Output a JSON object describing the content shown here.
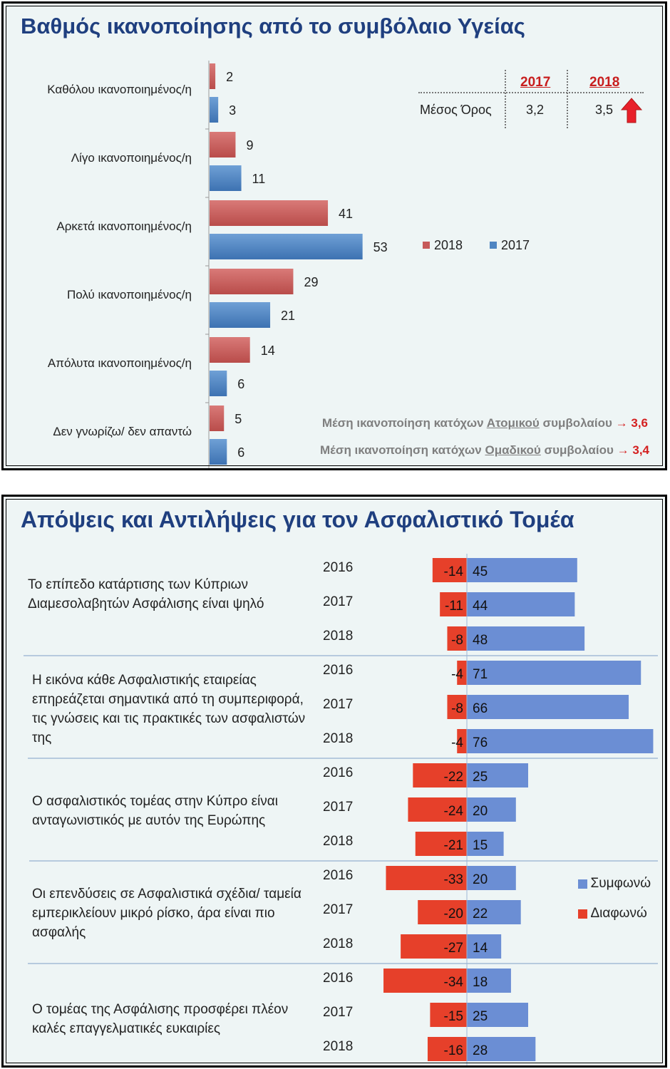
{
  "colors": {
    "red_bar": "#c65a5a",
    "blue_bar": "#4f85c2",
    "agree": "#6b8ed4",
    "disagree": "#e6402a",
    "title": "#1f3f7f",
    "accent_red": "#d42020"
  },
  "panel1": {
    "title": "Βαθμός ικανοποίησης από το συμβόλαιο Υγείας",
    "chart_data": {
      "type": "bar",
      "orientation": "horizontal",
      "categories": [
        "Καθόλου ικανοποιημένος/η",
        "Λίγο ικανοποιημένος/η",
        "Αρκετά ικανοποιημένος/η",
        "Πολύ ικανοποιημένος/η",
        "Απόλυτα ικανοποιημένος/η",
        "Δεν γνωρίζω/ δεν απαντώ"
      ],
      "series": [
        {
          "name": "2018",
          "values": [
            2,
            9,
            41,
            29,
            14,
            5
          ]
        },
        {
          "name": "2017",
          "values": [
            3,
            11,
            53,
            21,
            6,
            6
          ]
        }
      ],
      "legend": [
        "2018",
        "2017"
      ],
      "legend_position": "right"
    },
    "mean_table": {
      "col_2017": "2017",
      "col_2018": "2018",
      "row_label": "Μέσος Όρος",
      "val_2017": "3,2",
      "val_2018": "3,5"
    },
    "notes": [
      {
        "prefix": "Μέση ικανοποίηση κατόχων ",
        "underlined": "Ατομικού",
        "suffix": " συμβολαίου",
        "arrow": "→",
        "value": "3,6"
      },
      {
        "prefix": "Μέση ικανοποίηση κατόχων ",
        "underlined": "Ομαδικού",
        "suffix": " συμβολαίου",
        "arrow": "→",
        "value": "3,4"
      }
    ]
  },
  "panel2": {
    "title": "Απόψεις και Αντιλήψεις για τον Ασφαλιστικό Τομέα",
    "years": [
      "2016",
      "2017",
      "2018"
    ],
    "legend": {
      "agree": "Συμφωνώ",
      "disagree": "Διαφωνώ"
    },
    "chart_data": {
      "type": "bar",
      "orientation": "horizontal",
      "stacked": "diverging",
      "groups": [
        {
          "statement": "Το επίπεδο κατάρτισης των Κύπριων Διαμεσολαβητών Ασφάλισης είναι ψηλό",
          "rows": [
            {
              "year": "2016",
              "disagree": -14,
              "agree": 45
            },
            {
              "year": "2017",
              "disagree": -11,
              "agree": 44
            },
            {
              "year": "2018",
              "disagree": -8,
              "agree": 48
            }
          ]
        },
        {
          "statement": "Η εικόνα κάθε Ασφαλιστικής εταιρείας επηρεάζεται σημαντικά από τη συμπεριφορά, τις γνώσεις και τις πρακτικές των ασφαλιστών της",
          "rows": [
            {
              "year": "2016",
              "disagree": -4,
              "agree": 71
            },
            {
              "year": "2017",
              "disagree": -8,
              "agree": 66
            },
            {
              "year": "2018",
              "disagree": -4,
              "agree": 76
            }
          ]
        },
        {
          "statement": "Ο ασφαλιστικός τομέας στην Κύπρο είναι ανταγωνιστικός με αυτόν της Ευρώπης",
          "rows": [
            {
              "year": "2016",
              "disagree": -22,
              "agree": 25
            },
            {
              "year": "2017",
              "disagree": -24,
              "agree": 20
            },
            {
              "year": "2018",
              "disagree": -21,
              "agree": 15
            }
          ]
        },
        {
          "statement": "Οι επενδύσεις σε Ασφαλιστικά σχέδια/ ταμεία εμπερικλείουν μικρό ρίσκο, άρα είναι πιο ασφαλής",
          "rows": [
            {
              "year": "2016",
              "disagree": -33,
              "agree": 20
            },
            {
              "year": "2017",
              "disagree": -20,
              "agree": 22
            },
            {
              "year": "2018",
              "disagree": -27,
              "agree": 14
            }
          ]
        },
        {
          "statement": "Ο τομέας της Ασφάλισης προσφέρει πλέον καλές επαγγελματικές ευκαιρίες",
          "rows": [
            {
              "year": "2016",
              "disagree": -34,
              "agree": 18
            },
            {
              "year": "2017",
              "disagree": -15,
              "agree": 25
            },
            {
              "year": "2018",
              "disagree": -16,
              "agree": 28
            }
          ]
        }
      ]
    }
  }
}
